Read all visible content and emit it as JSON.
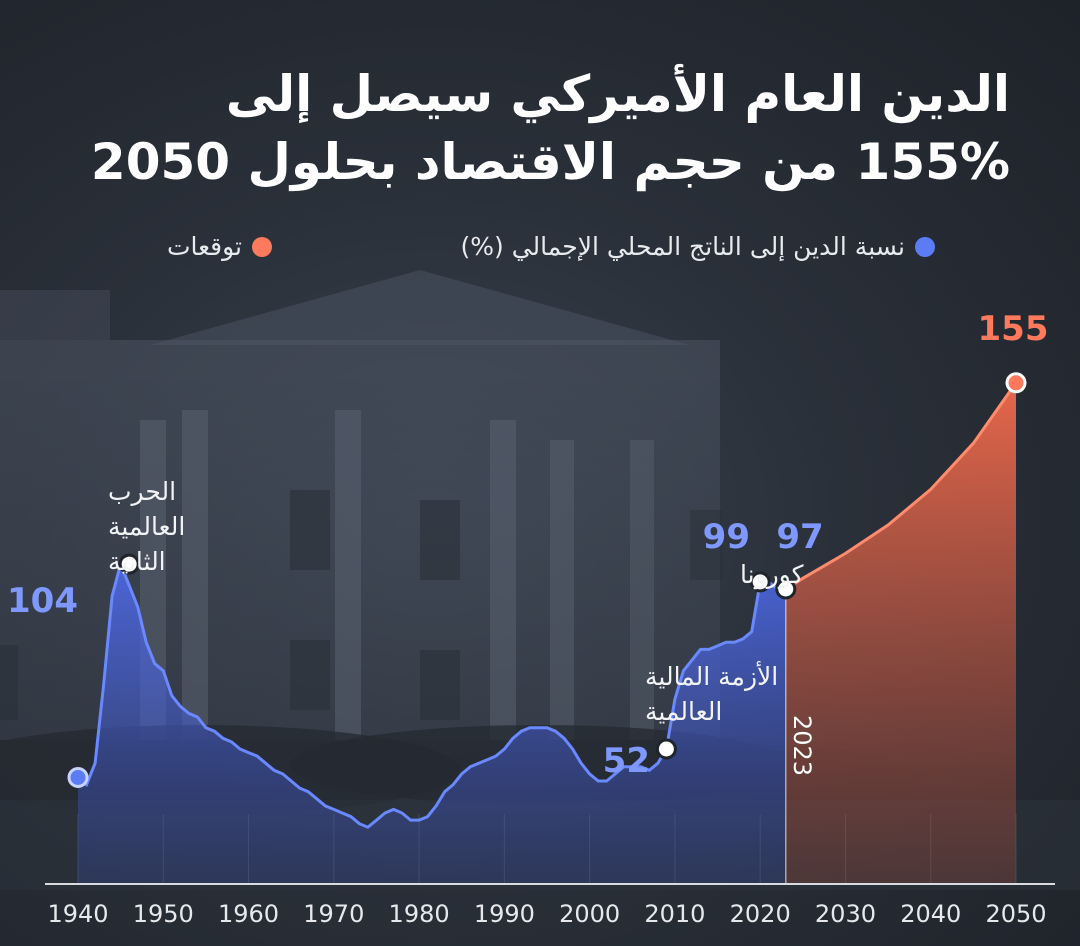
{
  "title_line1": "الدين العام الأميركي سيصل إلى",
  "title_line2": "155% من حجم الاقتصاد بحلول 2050",
  "legend": [
    {
      "label": "نسبة الدين إلى الناتج المحلي الإجمالي (%)",
      "color": "#5b7cf5"
    },
    {
      "label": "توقعات",
      "color": "#ff7a5c"
    }
  ],
  "chart_data": {
    "type": "area",
    "title": "الدين العام الأميركي سيصل إلى 155% من حجم الاقتصاد بحلول 2050",
    "x_ticks": [
      1940,
      1950,
      1960,
      1970,
      1980,
      1990,
      2000,
      2010,
      2020,
      2030,
      2040,
      2050
    ],
    "xlim": [
      1940,
      2050
    ],
    "ylim": [
      25,
      160
    ],
    "series": [
      {
        "name": "نسبة الدين إلى الناتج المحلي الإجمالي (%)",
        "color": "#5b7cf5",
        "x": [
          1940,
          1941,
          1942,
          1943,
          1944,
          1945,
          1946,
          1947,
          1948,
          1949,
          1950,
          1951,
          1952,
          1953,
          1954,
          1955,
          1956,
          1957,
          1958,
          1959,
          1960,
          1961,
          1962,
          1963,
          1964,
          1965,
          1966,
          1967,
          1968,
          1969,
          1970,
          1971,
          1972,
          1973,
          1974,
          1975,
          1976,
          1977,
          1978,
          1979,
          1980,
          1981,
          1982,
          1983,
          1984,
          1985,
          1986,
          1987,
          1988,
          1989,
          1990,
          1991,
          1992,
          1993,
          1994,
          1995,
          1996,
          1997,
          1998,
          1999,
          2000,
          2001,
          2002,
          2003,
          2004,
          2005,
          2006,
          2007,
          2008,
          2009,
          2010,
          2011,
          2012,
          2013,
          2014,
          2015,
          2016,
          2017,
          2018,
          2019,
          2020,
          2021,
          2022,
          2023
        ],
        "values": [
          44,
          42,
          48,
          70,
          95,
          104,
          98,
          92,
          82,
          76,
          74,
          67,
          64,
          62,
          61,
          58,
          57,
          55,
          54,
          52,
          51,
          50,
          48,
          46,
          45,
          43,
          41,
          40,
          38,
          36,
          35,
          34,
          33,
          31,
          30,
          32,
          34,
          35,
          34,
          32,
          32,
          33,
          36,
          40,
          42,
          45,
          47,
          48,
          49,
          50,
          52,
          55,
          57,
          58,
          58,
          58,
          57,
          55,
          52,
          48,
          45,
          43,
          43,
          45,
          47,
          47,
          47,
          46,
          48,
          52,
          66,
          74,
          77,
          80,
          80,
          81,
          82,
          82,
          83,
          85,
          99,
          99,
          97,
          97
        ]
      },
      {
        "name": "توقعات",
        "color": "#ff7a5c",
        "x": [
          2023,
          2025,
          2030,
          2035,
          2040,
          2045,
          2050
        ],
        "values": [
          97,
          100,
          107,
          115,
          125,
          138,
          155
        ]
      }
    ],
    "annotations": [
      {
        "x": 1940,
        "y": 44,
        "text": "",
        "value": ""
      },
      {
        "x": 1946,
        "y": 104,
        "text": "الحرب العالمية الثانية",
        "value": "104"
      },
      {
        "x": 2009,
        "y": 52,
        "text": "الأزمة المالية العالمية",
        "value": "52"
      },
      {
        "x": 2020,
        "y": 99,
        "text": "كورونا",
        "value": "99"
      },
      {
        "x": 2023,
        "y": 97,
        "text": "",
        "value": "97"
      },
      {
        "x": 2050,
        "y": 155,
        "text": "",
        "value": "155"
      }
    ],
    "vertical_marker": {
      "x": 2023,
      "label": "2023"
    }
  }
}
